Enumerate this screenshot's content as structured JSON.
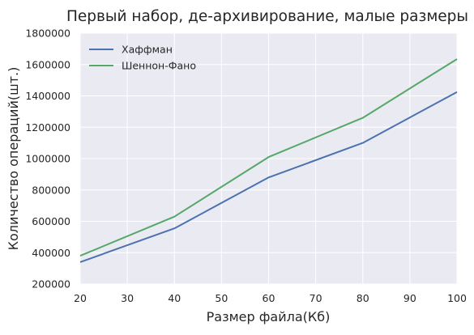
{
  "chart_data": {
    "type": "line",
    "title": "Первый набор, де-архивирование, малые размеры",
    "xlabel": "Размер файла(Кб)",
    "ylabel": "Количество операций(шт.)",
    "xlim": [
      20,
      100
    ],
    "ylim": [
      200000,
      1800000
    ],
    "x_ticks": [
      20,
      30,
      40,
      50,
      60,
      70,
      80,
      90,
      100
    ],
    "y_ticks": [
      200000,
      400000,
      600000,
      800000,
      1000000,
      1200000,
      1400000,
      1600000,
      1800000
    ],
    "grid": true,
    "legend_position": "top-left",
    "background_color": "#eaeaf2",
    "grid_color": "#ffffff",
    "series": [
      {
        "name": "Хаффман",
        "color": "#4c72b0",
        "points": [
          [
            20,
            340000
          ],
          [
            40,
            555000
          ],
          [
            60,
            880000
          ],
          [
            80,
            1100000
          ],
          [
            100,
            1425000
          ]
        ]
      },
      {
        "name": "Шеннон-Фано",
        "color": "#55a868",
        "points": [
          [
            20,
            380000
          ],
          [
            40,
            630000
          ],
          [
            60,
            1010000
          ],
          [
            80,
            1260000
          ],
          [
            100,
            1635000
          ]
        ]
      }
    ]
  }
}
